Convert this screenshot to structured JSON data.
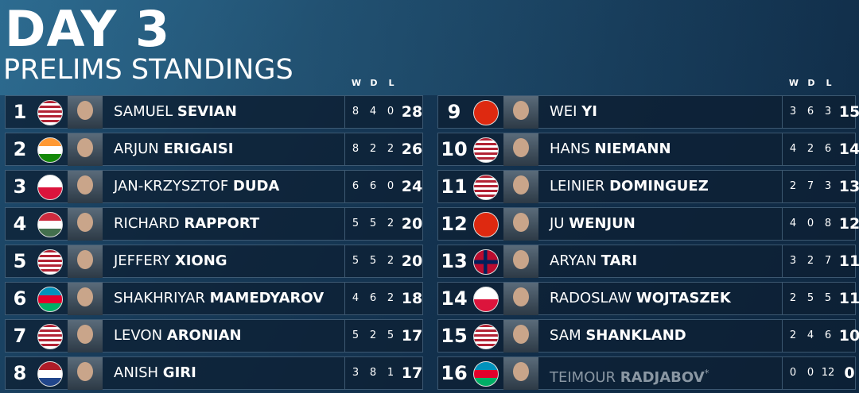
{
  "header": {
    "title": "DAY 3",
    "subtitle": "PRELIMS STANDINGS"
  },
  "columns": [
    "W",
    "D",
    "L"
  ],
  "standings": [
    {
      "rank": 1,
      "first": "SAMUEL",
      "last": "SEVIAN",
      "w": 8,
      "d": 4,
      "l": 0,
      "pts": 28
    },
    {
      "rank": 2,
      "first": "ARJUN",
      "last": "ERIGAISI",
      "w": 8,
      "d": 2,
      "l": 2,
      "pts": 26
    },
    {
      "rank": 3,
      "first": "JAN-KRZYSZTOF",
      "last": "DUDA",
      "w": 6,
      "d": 6,
      "l": 0,
      "pts": 24
    },
    {
      "rank": 4,
      "first": "RICHARD",
      "last": "RAPPORT",
      "w": 5,
      "d": 5,
      "l": 2,
      "pts": 20
    },
    {
      "rank": 5,
      "first": "JEFFERY",
      "last": "XIONG",
      "w": 5,
      "d": 5,
      "l": 2,
      "pts": 20
    },
    {
      "rank": 6,
      "first": "SHAKHRIYAR",
      "last": "MAMEDYAROV",
      "w": 4,
      "d": 6,
      "l": 2,
      "pts": 18
    },
    {
      "rank": 7,
      "first": "LEVON",
      "last": "ARONIAN",
      "w": 5,
      "d": 2,
      "l": 5,
      "pts": 17
    },
    {
      "rank": 8,
      "first": "ANISH",
      "last": "GIRI",
      "w": 3,
      "d": 8,
      "l": 1,
      "pts": 17
    },
    {
      "rank": 9,
      "first": "WEI",
      "last": "YI",
      "w": 3,
      "d": 6,
      "l": 3,
      "pts": 15
    },
    {
      "rank": 10,
      "first": "HANS",
      "last": "NIEMANN",
      "w": 4,
      "d": 2,
      "l": 6,
      "pts": 14
    },
    {
      "rank": 11,
      "first": "LEINIER",
      "last": "DOMINGUEZ",
      "w": 2,
      "d": 7,
      "l": 3,
      "pts": 13
    },
    {
      "rank": 12,
      "first": "JU",
      "last": "WENJUN",
      "w": 4,
      "d": 0,
      "l": 8,
      "pts": 12
    },
    {
      "rank": 13,
      "first": "ARYAN",
      "last": "TARI",
      "w": 3,
      "d": 2,
      "l": 7,
      "pts": 11
    },
    {
      "rank": 14,
      "first": "RADOSLAW",
      "last": "WOJTASZEK",
      "w": 2,
      "d": 5,
      "l": 5,
      "pts": 11
    },
    {
      "rank": 15,
      "first": "SAM",
      "last": "SHANKLAND",
      "w": 2,
      "d": 4,
      "l": 6,
      "pts": 10
    },
    {
      "rank": 16,
      "first": "TEIMOUR",
      "last": "RADJABOV",
      "note": "*",
      "w": 0,
      "d": 0,
      "l": 12,
      "pts": 0
    }
  ]
}
